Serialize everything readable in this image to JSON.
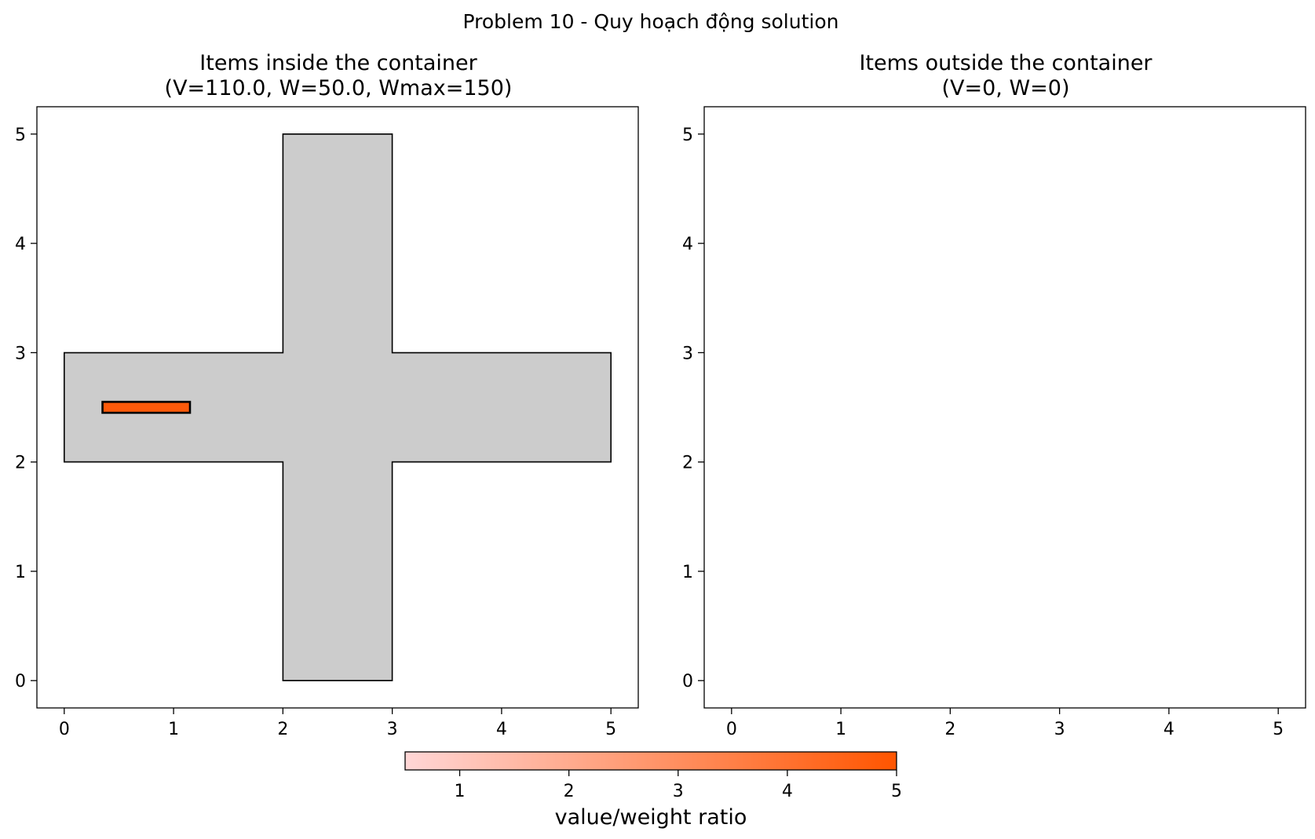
{
  "figure": {
    "suptitle": "Problem 10 - Quy hoạch động solution"
  },
  "chart_data": [
    {
      "type": "polygon-plot",
      "title": "Items inside the container",
      "subtitle": "(V=110.0, W=50.0, Wmax=150)",
      "xlim": [
        -0.25,
        5.25
      ],
      "ylim": [
        -0.25,
        5.25
      ],
      "xticks": [
        "0",
        "1",
        "2",
        "3",
        "4",
        "5"
      ],
      "yticks": [
        "0",
        "1",
        "2",
        "3",
        "4",
        "5"
      ],
      "grid": false,
      "container": {
        "shape": "cross",
        "fill": "#cccccc",
        "vertices": [
          [
            2,
            0
          ],
          [
            3,
            0
          ],
          [
            3,
            2
          ],
          [
            5,
            2
          ],
          [
            5,
            3
          ],
          [
            3,
            3
          ],
          [
            3,
            5
          ],
          [
            2,
            5
          ],
          [
            2,
            3
          ],
          [
            0,
            3
          ],
          [
            0,
            2
          ],
          [
            2,
            2
          ]
        ]
      },
      "items": [
        {
          "x0": 0.35,
          "y0": 2.45,
          "x1": 1.15,
          "y1": 2.55,
          "ratio": 5,
          "color": "#ff5a0a"
        }
      ]
    },
    {
      "type": "polygon-plot",
      "title": "Items outside the container",
      "subtitle": "(V=0, W=0)",
      "xlim": [
        -0.25,
        5.25
      ],
      "ylim": [
        -0.25,
        5.25
      ],
      "xticks": [
        "0",
        "1",
        "2",
        "3",
        "4",
        "5"
      ],
      "yticks": [
        "0",
        "1",
        "2",
        "3",
        "4",
        "5"
      ],
      "grid": false,
      "items": []
    }
  ],
  "colorbar": {
    "label": "value/weight ratio",
    "range": [
      0.5,
      5
    ],
    "ticks": [
      "1",
      "2",
      "3",
      "4",
      "5"
    ],
    "color_low": "#ffd6d6",
    "color_high": "#ff5500"
  }
}
